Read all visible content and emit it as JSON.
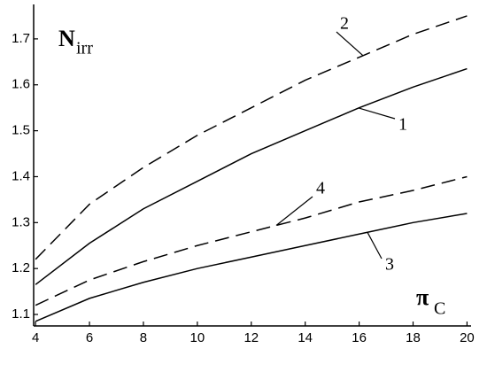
{
  "chart_data": {
    "type": "line",
    "ylabel": "N",
    "ylabel_subscript": "irr",
    "xlabel": "π",
    "xlabel_subscript": "C",
    "x": [
      4,
      6,
      8,
      10,
      12,
      14,
      16,
      18,
      20
    ],
    "series": [
      {
        "name": "1",
        "color": "#000000",
        "style": "solid",
        "values": [
          1.165,
          1.255,
          1.33,
          1.39,
          1.45,
          1.5,
          1.55,
          1.595,
          1.635
        ]
      },
      {
        "name": "2",
        "color": "#000000",
        "style": "dashed",
        "values": [
          1.22,
          1.34,
          1.42,
          1.49,
          1.55,
          1.61,
          1.66,
          1.71,
          1.75
        ]
      },
      {
        "name": "3",
        "color": "#000000",
        "style": "solid",
        "values": [
          1.085,
          1.135,
          1.17,
          1.2,
          1.225,
          1.25,
          1.275,
          1.3,
          1.32
        ]
      },
      {
        "name": "4",
        "color": "#000000",
        "style": "dashed",
        "values": [
          1.12,
          1.175,
          1.215,
          1.25,
          1.28,
          1.31,
          1.345,
          1.37,
          1.4
        ]
      }
    ],
    "xlim": [
      3.93,
      20.15
    ],
    "ylim": [
      1.075,
      1.775
    ],
    "xticks": [
      4,
      6,
      8,
      10,
      12,
      14,
      16,
      18,
      20
    ],
    "yticks": [
      1.1,
      1.2,
      1.3,
      1.4,
      1.5,
      1.6,
      1.7
    ],
    "grid": false
  }
}
